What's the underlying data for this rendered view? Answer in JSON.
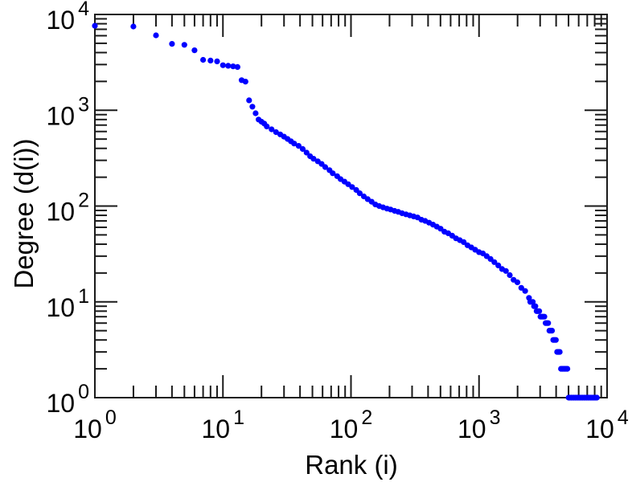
{
  "figure": {
    "background": "#ffffff",
    "axis_color": "#1a1a1a",
    "point_color": "#0000ff",
    "text_color": "#000000"
  },
  "chart_data": {
    "type": "scatter",
    "title": "",
    "xlabel": "Rank (i)",
    "ylabel": "Degree (d(i))",
    "x_scale": "log",
    "y_scale": "log",
    "xlim": [
      1,
      10000
    ],
    "ylim": [
      1,
      10000
    ],
    "x_tick_labels": [
      "10^0",
      "10^1",
      "10^2",
      "10^3",
      "10^4"
    ],
    "y_tick_labels": [
      "10^0",
      "10^1",
      "10^2",
      "10^3",
      "10^4"
    ],
    "grid": false,
    "legend": null,
    "marker": "filled-circle",
    "series_name": "degree-vs-rank",
    "points": [
      [
        1,
        7620
      ],
      [
        2,
        7480
      ],
      [
        3,
        6050
      ],
      [
        4,
        4930
      ],
      [
        5,
        4820
      ],
      [
        6,
        4230
      ],
      [
        7,
        3360
      ],
      [
        8,
        3300
      ],
      [
        9,
        3240
      ],
      [
        10,
        2950
      ],
      [
        11,
        2910
      ],
      [
        12,
        2870
      ],
      [
        13,
        2830
      ],
      [
        14,
        2060
      ],
      [
        15,
        1990
      ],
      [
        16,
        1270
      ],
      [
        17,
        1090
      ],
      [
        18,
        930
      ],
      [
        19,
        800
      ],
      [
        20,
        760
      ],
      [
        21,
        727
      ],
      [
        22,
        678
      ],
      [
        24,
        632
      ],
      [
        26,
        591
      ],
      [
        28,
        560
      ],
      [
        30,
        530
      ],
      [
        32,
        501
      ],
      [
        34,
        474
      ],
      [
        36,
        449
      ],
      [
        39,
        425
      ],
      [
        42,
        394
      ],
      [
        45,
        361
      ],
      [
        48,
        331
      ],
      [
        51,
        312
      ],
      [
        55,
        293
      ],
      [
        59,
        275
      ],
      [
        63,
        255
      ],
      [
        68,
        237
      ],
      [
        72,
        220
      ],
      [
        78,
        205
      ],
      [
        83,
        191
      ],
      [
        89,
        180
      ],
      [
        95,
        169
      ],
      [
        102,
        158
      ],
      [
        110,
        147
      ],
      [
        117,
        136
      ],
      [
        126,
        126
      ],
      [
        135,
        118
      ],
      [
        145,
        111
      ],
      [
        155,
        104
      ],
      [
        166,
        100
      ],
      [
        178,
        97
      ],
      [
        191,
        94
      ],
      [
        204,
        92
      ],
      [
        219,
        89
      ],
      [
        234,
        87
      ],
      [
        251,
        84
      ],
      [
        269,
        82
      ],
      [
        288,
        80
      ],
      [
        309,
        78
      ],
      [
        331,
        76
      ],
      [
        355,
        72
      ],
      [
        380,
        70
      ],
      [
        407,
        67
      ],
      [
        437,
        64
      ],
      [
        468,
        61
      ],
      [
        501,
        58
      ],
      [
        537,
        54
      ],
      [
        575,
        52
      ],
      [
        617,
        49
      ],
      [
        661,
        46
      ],
      [
        708,
        44
      ],
      [
        759,
        42
      ],
      [
        813,
        39
      ],
      [
        871,
        37
      ],
      [
        933,
        35
      ],
      [
        1000,
        33
      ],
      [
        1072,
        32
      ],
      [
        1148,
        30
      ],
      [
        1230,
        28
      ],
      [
        1318,
        26
      ],
      [
        1413,
        24
      ],
      [
        1514,
        22
      ],
      [
        1622,
        21
      ],
      [
        1738,
        19
      ],
      [
        1862,
        17
      ],
      [
        1995,
        16
      ],
      [
        2138,
        14
      ],
      [
        2291,
        13
      ],
      [
        2455,
        11
      ],
      [
        2512,
        10
      ],
      [
        2630,
        10
      ],
      [
        2692,
        9
      ],
      [
        2754,
        9
      ],
      [
        2818,
        8
      ],
      [
        2884,
        8
      ],
      [
        2951,
        8
      ],
      [
        3020,
        7
      ],
      [
        3090,
        7
      ],
      [
        3162,
        7
      ],
      [
        3236,
        7
      ],
      [
        3311,
        6
      ],
      [
        3388,
        6
      ],
      [
        3467,
        6
      ],
      [
        3548,
        5
      ],
      [
        3631,
        5
      ],
      [
        3715,
        5
      ],
      [
        3802,
        4
      ],
      [
        3890,
        4
      ],
      [
        3981,
        4
      ],
      [
        4074,
        3
      ],
      [
        4169,
        3
      ],
      [
        4266,
        3
      ],
      [
        4365,
        2
      ],
      [
        4467,
        2
      ],
      [
        4571,
        2
      ],
      [
        4677,
        2
      ],
      [
        4786,
        2
      ],
      [
        4898,
        2
      ],
      [
        5012,
        1
      ],
      [
        5129,
        1
      ],
      [
        5248,
        1
      ],
      [
        5370,
        1
      ],
      [
        5495,
        1
      ],
      [
        5623,
        1
      ],
      [
        5754,
        1
      ],
      [
        5888,
        1
      ],
      [
        6026,
        1
      ],
      [
        6166,
        1
      ],
      [
        6310,
        1
      ],
      [
        6457,
        1
      ],
      [
        6607,
        1
      ],
      [
        6761,
        1
      ],
      [
        6918,
        1
      ],
      [
        7079,
        1
      ],
      [
        7244,
        1
      ],
      [
        7413,
        1
      ],
      [
        7586,
        1
      ],
      [
        7762,
        1
      ],
      [
        7943,
        1
      ],
      [
        8128,
        1
      ],
      [
        8318,
        1
      ]
    ]
  }
}
